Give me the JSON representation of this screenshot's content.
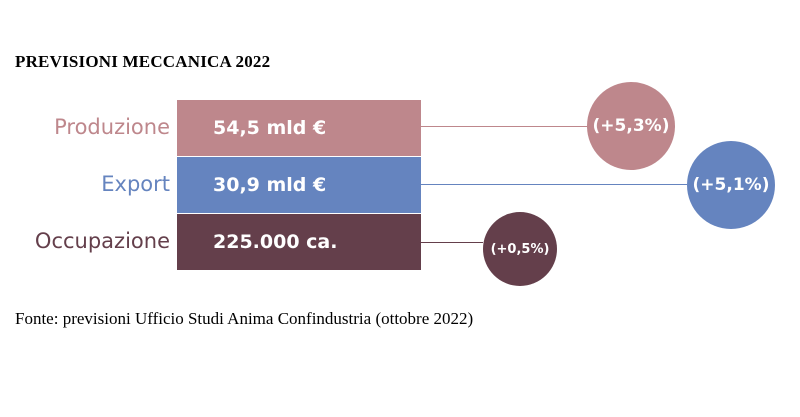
{
  "title": "PREVISIONI MECCANICA 2022",
  "source": "Fonte: previsioni Ufficio Studi Anima Confindustria (ottobre 2022)",
  "colors": {
    "produzione": "#be878c",
    "export": "#6584bf",
    "occupazione": "#643f4b"
  },
  "chart_data": {
    "type": "table",
    "title": "PREVISIONI MECCANICA 2022",
    "rows": [
      {
        "label": "Produzione",
        "value_text": "54,5 mld €",
        "change_text": "(+5,3%)",
        "value": 54.5,
        "unit": "mld €",
        "change_pct": 5.3
      },
      {
        "label": "Export",
        "value_text": "30,9 mld €",
        "change_text": "(+5,1%)",
        "value": 30.9,
        "unit": "mld €",
        "change_pct": 5.1
      },
      {
        "label": "Occupazione",
        "value_text": "225.000 ca.",
        "change_text": "(+0,5%)",
        "value": 225000,
        "unit": "ca.",
        "change_pct": 0.5
      }
    ]
  }
}
